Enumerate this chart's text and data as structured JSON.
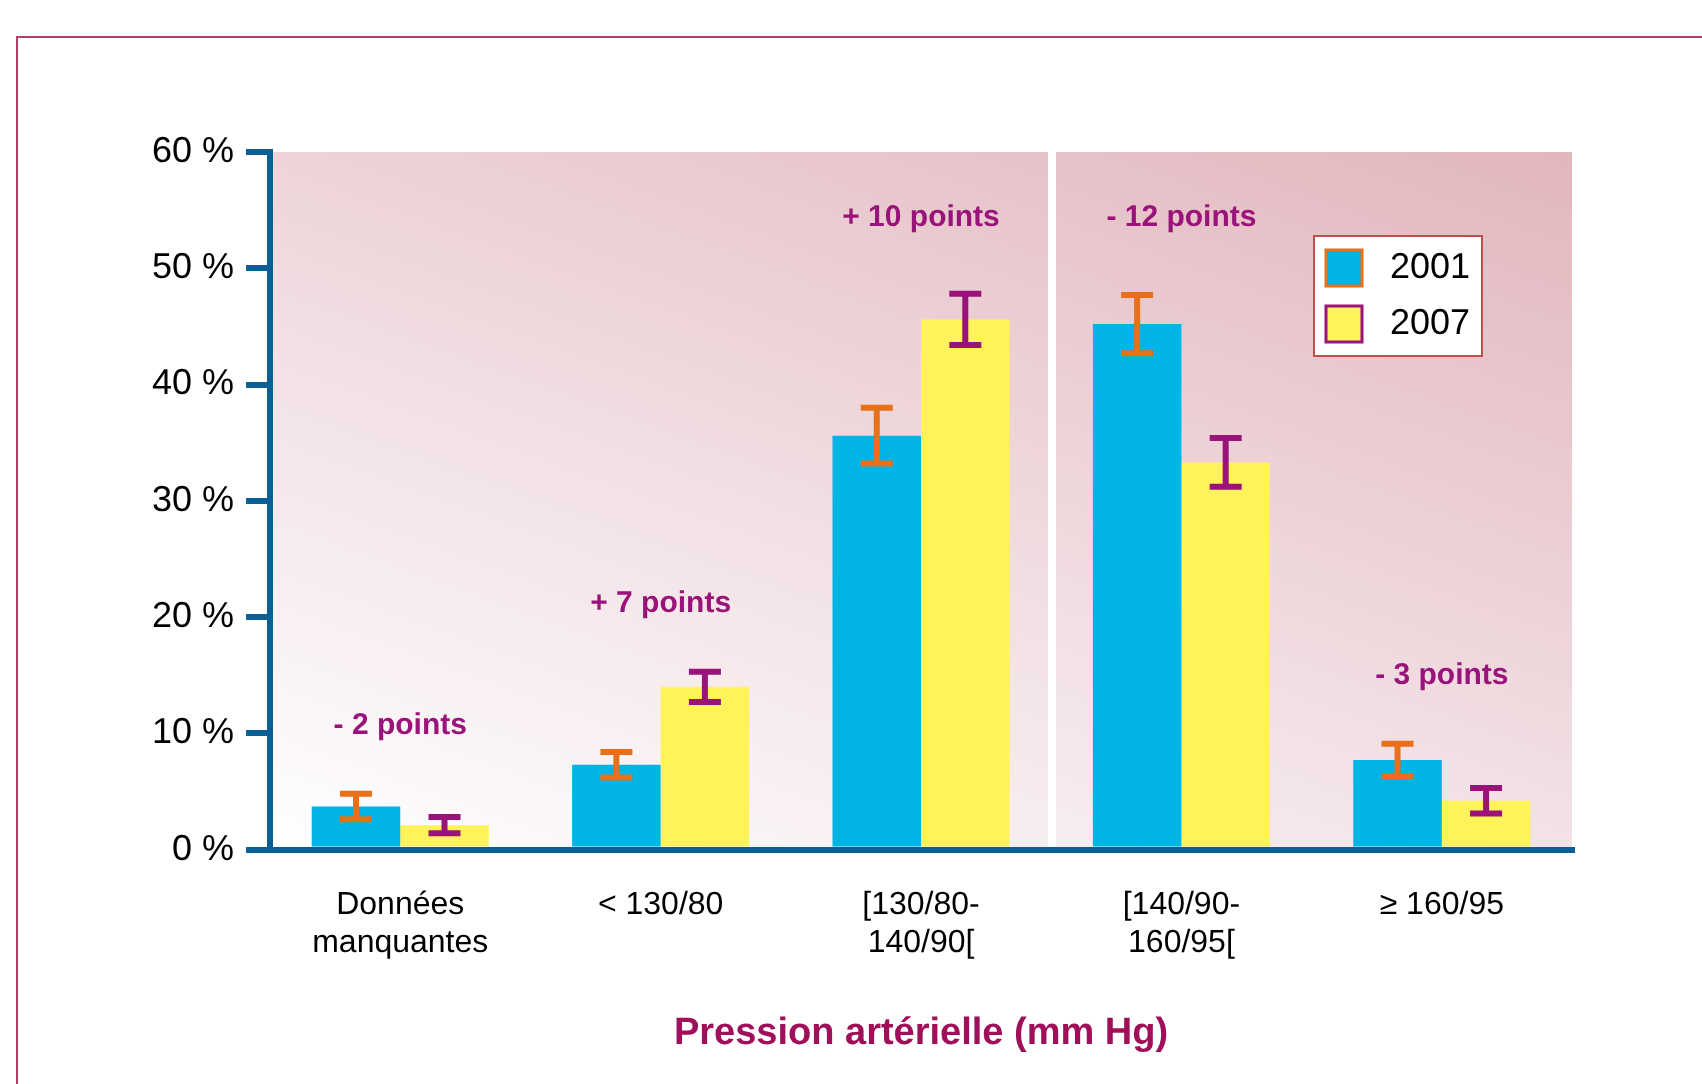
{
  "chart_data": {
    "type": "bar",
    "xlabel": "Pression artérielle (mm Hg)",
    "categories": [
      "Données\nmanquantes",
      "< 130/80",
      "[130/80-\n140/90[",
      "[140/90-\n160/95[",
      "≥ 160/95"
    ],
    "series": [
      {
        "name": "2001",
        "color": "#00b4e6",
        "values": [
          3.7,
          7.3,
          35.6,
          45.2,
          7.7
        ],
        "errors": [
          1.1,
          1.1,
          2.4,
          2.5,
          1.4
        ]
      },
      {
        "name": "2007",
        "color": "#fff25a",
        "values": [
          2.1,
          14.0,
          45.6,
          33.3,
          4.2
        ],
        "errors": [
          0.7,
          1.3,
          2.2,
          2.1,
          1.1
        ]
      }
    ],
    "ylim": [
      0,
      60
    ],
    "yticks": [
      {
        "value": 0,
        "label": "0 %"
      },
      {
        "value": 10,
        "label": "10 %"
      },
      {
        "value": 20,
        "label": "20 %"
      },
      {
        "value": 30,
        "label": "30 %"
      },
      {
        "value": 40,
        "label": "40 %"
      },
      {
        "value": 50,
        "label": "50 %"
      },
      {
        "value": 60,
        "label": "60 %"
      }
    ],
    "annotations": [
      "- 2 points",
      "+ 7 points",
      "+ 10 points",
      "- 12 points",
      "- 3 points"
    ],
    "grid": false,
    "legend": "top right"
  }
}
